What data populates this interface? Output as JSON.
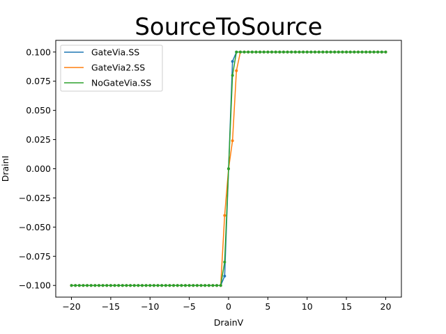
{
  "chart_data": {
    "type": "line",
    "title": "SourceToSource",
    "xlabel": "DrainV",
    "ylabel": "DrainI",
    "xlim": [
      -22,
      22
    ],
    "ylim": [
      -0.11,
      0.11
    ],
    "xticks": [
      -20,
      -15,
      -10,
      -5,
      0,
      5,
      10,
      15,
      20
    ],
    "xtick_labels": [
      "−20",
      "−15",
      "−10",
      "−5",
      "0",
      "5",
      "10",
      "15",
      "20"
    ],
    "yticks": [
      -0.1,
      -0.075,
      -0.05,
      -0.025,
      0.0,
      0.025,
      0.05,
      0.075,
      0.1
    ],
    "ytick_labels": [
      "−0.100",
      "−0.075",
      "−0.050",
      "−0.025",
      "0.000",
      "0.025",
      "0.050",
      "0.075",
      "0.100"
    ],
    "grid": false,
    "legend_position": "upper-left",
    "series": [
      {
        "name": "GateVia.SS",
        "color": "#1f77b4",
        "x": [
          -20,
          -19.5,
          -19,
          -18.5,
          -18,
          -17.5,
          -17,
          -16.5,
          -16,
          -15.5,
          -15,
          -14.5,
          -14,
          -13.5,
          -13,
          -12.5,
          -12,
          -11.5,
          -11,
          -10.5,
          -10,
          -9.5,
          -9,
          -8.5,
          -8,
          -7.5,
          -7,
          -6.5,
          -6,
          -5.5,
          -5,
          -4.5,
          -4,
          -3.5,
          -3,
          -2.5,
          -2,
          -1.5,
          -1,
          -0.5,
          0,
          0.5,
          1,
          1.5,
          2,
          2.5,
          3,
          3.5,
          4,
          4.5,
          5,
          5.5,
          6,
          6.5,
          7,
          7.5,
          8,
          8.5,
          9,
          9.5,
          10,
          10.5,
          11,
          11.5,
          12,
          12.5,
          13,
          13.5,
          14,
          14.5,
          15,
          15.5,
          16,
          16.5,
          17,
          17.5,
          18,
          18.5,
          19,
          19.5,
          20
        ],
        "y": [
          -0.1,
          -0.1,
          -0.1,
          -0.1,
          -0.1,
          -0.1,
          -0.1,
          -0.1,
          -0.1,
          -0.1,
          -0.1,
          -0.1,
          -0.1,
          -0.1,
          -0.1,
          -0.1,
          -0.1,
          -0.1,
          -0.1,
          -0.1,
          -0.1,
          -0.1,
          -0.1,
          -0.1,
          -0.1,
          -0.1,
          -0.1,
          -0.1,
          -0.1,
          -0.1,
          -0.1,
          -0.1,
          -0.1,
          -0.1,
          -0.1,
          -0.1,
          -0.1,
          -0.1,
          -0.1,
          -0.092,
          0.0,
          0.092,
          0.1,
          0.1,
          0.1,
          0.1,
          0.1,
          0.1,
          0.1,
          0.1,
          0.1,
          0.1,
          0.1,
          0.1,
          0.1,
          0.1,
          0.1,
          0.1,
          0.1,
          0.1,
          0.1,
          0.1,
          0.1,
          0.1,
          0.1,
          0.1,
          0.1,
          0.1,
          0.1,
          0.1,
          0.1,
          0.1,
          0.1,
          0.1,
          0.1,
          0.1,
          0.1,
          0.1,
          0.1,
          0.1,
          0.1
        ]
      },
      {
        "name": "GateVia2.SS",
        "color": "#ff7f0e",
        "x": [
          -20,
          -19.5,
          -19,
          -18.5,
          -18,
          -17.5,
          -17,
          -16.5,
          -16,
          -15.5,
          -15,
          -14.5,
          -14,
          -13.5,
          -13,
          -12.5,
          -12,
          -11.5,
          -11,
          -10.5,
          -10,
          -9.5,
          -9,
          -8.5,
          -8,
          -7.5,
          -7,
          -6.5,
          -6,
          -5.5,
          -5,
          -4.5,
          -4,
          -3.5,
          -3,
          -2.5,
          -2,
          -1.5,
          -1,
          -0.5,
          0,
          0.5,
          1,
          1.5,
          2,
          2.5,
          3,
          3.5,
          4,
          4.5,
          5,
          5.5,
          6,
          6.5,
          7,
          7.5,
          8,
          8.5,
          9,
          9.5,
          10,
          10.5,
          11,
          11.5,
          12,
          12.5,
          13,
          13.5,
          14,
          14.5,
          15,
          15.5,
          16,
          16.5,
          17,
          17.5,
          18,
          18.5,
          19,
          19.5,
          20
        ],
        "y": [
          -0.1,
          -0.1,
          -0.1,
          -0.1,
          -0.1,
          -0.1,
          -0.1,
          -0.1,
          -0.1,
          -0.1,
          -0.1,
          -0.1,
          -0.1,
          -0.1,
          -0.1,
          -0.1,
          -0.1,
          -0.1,
          -0.1,
          -0.1,
          -0.1,
          -0.1,
          -0.1,
          -0.1,
          -0.1,
          -0.1,
          -0.1,
          -0.1,
          -0.1,
          -0.1,
          -0.1,
          -0.1,
          -0.1,
          -0.1,
          -0.1,
          -0.1,
          -0.1,
          -0.1,
          -0.1,
          -0.04,
          0.0,
          0.024,
          0.084,
          0.1,
          0.1,
          0.1,
          0.1,
          0.1,
          0.1,
          0.1,
          0.1,
          0.1,
          0.1,
          0.1,
          0.1,
          0.1,
          0.1,
          0.1,
          0.1,
          0.1,
          0.1,
          0.1,
          0.1,
          0.1,
          0.1,
          0.1,
          0.1,
          0.1,
          0.1,
          0.1,
          0.1,
          0.1,
          0.1,
          0.1,
          0.1,
          0.1,
          0.1,
          0.1,
          0.1,
          0.1,
          0.1
        ]
      },
      {
        "name": "NoGateVia.SS",
        "color": "#2ca02c",
        "x": [
          -20,
          -19.5,
          -19,
          -18.5,
          -18,
          -17.5,
          -17,
          -16.5,
          -16,
          -15.5,
          -15,
          -14.5,
          -14,
          -13.5,
          -13,
          -12.5,
          -12,
          -11.5,
          -11,
          -10.5,
          -10,
          -9.5,
          -9,
          -8.5,
          -8,
          -7.5,
          -7,
          -6.5,
          -6,
          -5.5,
          -5,
          -4.5,
          -4,
          -3.5,
          -3,
          -2.5,
          -2,
          -1.5,
          -1,
          -0.5,
          0,
          0.5,
          1,
          1.5,
          2,
          2.5,
          3,
          3.5,
          4,
          4.5,
          5,
          5.5,
          6,
          6.5,
          7,
          7.5,
          8,
          8.5,
          9,
          9.5,
          10,
          10.5,
          11,
          11.5,
          12,
          12.5,
          13,
          13.5,
          14,
          14.5,
          15,
          15.5,
          16,
          16.5,
          17,
          17.5,
          18,
          18.5,
          19,
          19.5,
          20
        ],
        "y": [
          -0.1,
          -0.1,
          -0.1,
          -0.1,
          -0.1,
          -0.1,
          -0.1,
          -0.1,
          -0.1,
          -0.1,
          -0.1,
          -0.1,
          -0.1,
          -0.1,
          -0.1,
          -0.1,
          -0.1,
          -0.1,
          -0.1,
          -0.1,
          -0.1,
          -0.1,
          -0.1,
          -0.1,
          -0.1,
          -0.1,
          -0.1,
          -0.1,
          -0.1,
          -0.1,
          -0.1,
          -0.1,
          -0.1,
          -0.1,
          -0.1,
          -0.1,
          -0.1,
          -0.1,
          -0.1,
          -0.08,
          0.0,
          0.08,
          0.1,
          0.1,
          0.1,
          0.1,
          0.1,
          0.1,
          0.1,
          0.1,
          0.1,
          0.1,
          0.1,
          0.1,
          0.1,
          0.1,
          0.1,
          0.1,
          0.1,
          0.1,
          0.1,
          0.1,
          0.1,
          0.1,
          0.1,
          0.1,
          0.1,
          0.1,
          0.1,
          0.1,
          0.1,
          0.1,
          0.1,
          0.1,
          0.1,
          0.1,
          0.1,
          0.1,
          0.1,
          0.1,
          0.1
        ]
      }
    ]
  }
}
